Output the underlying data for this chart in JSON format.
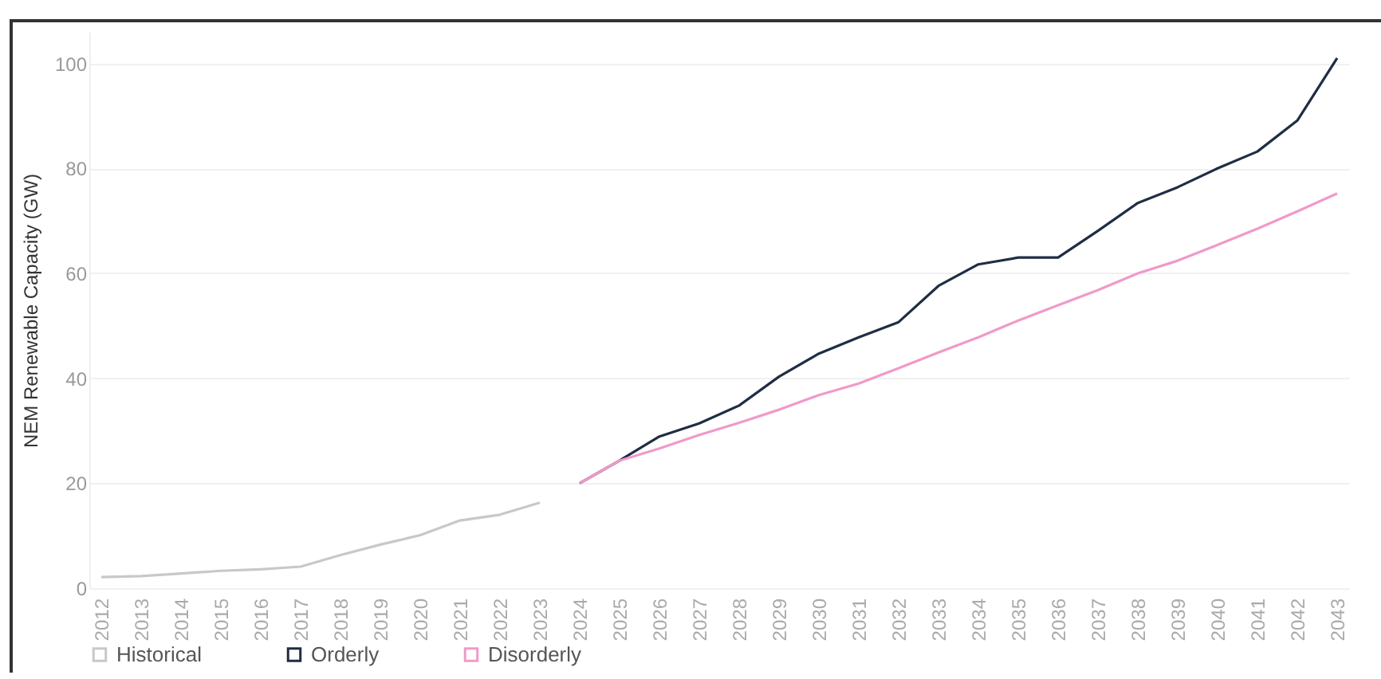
{
  "chart_data": {
    "type": "line",
    "ylabel": "NEM Renewable Capacity (GW)",
    "categories": [
      "2012",
      "2013",
      "2014",
      "2015",
      "2016",
      "2017",
      "2018",
      "2019",
      "2020",
      "2021",
      "2022",
      "2023",
      "2024",
      "2025",
      "2026",
      "2027",
      "2028",
      "2029",
      "2030",
      "2031",
      "2032",
      "2033",
      "2034",
      "2035",
      "2036",
      "2037",
      "2038",
      "2039",
      "2040",
      "2041",
      "2042",
      "2043"
    ],
    "series": [
      {
        "name": "Historical",
        "color": "#c8c8c8",
        "values": [
          2.1,
          2.3,
          2.8,
          3.3,
          3.6,
          4.1,
          6.3,
          8.3,
          10.1,
          12.9,
          14.0,
          16.3,
          null,
          null,
          null,
          null,
          null,
          null,
          null,
          null,
          null,
          null,
          null,
          null,
          null,
          null,
          null,
          null,
          null,
          null,
          null,
          null
        ]
      },
      {
        "name": "Orderly",
        "color": "#1f2d44",
        "values": [
          null,
          null,
          null,
          null,
          null,
          null,
          null,
          null,
          null,
          null,
          null,
          null,
          20.0,
          24.3,
          28.9,
          31.4,
          34.8,
          40.3,
          44.7,
          47.8,
          50.7,
          57.6,
          61.7,
          63.0,
          63.0,
          68.1,
          73.4,
          76.4,
          80.0,
          83.2,
          89.1,
          101.0
        ]
      },
      {
        "name": "Disorderly",
        "color": "#f09ac8",
        "values": [
          null,
          null,
          null,
          null,
          null,
          null,
          null,
          null,
          null,
          null,
          null,
          null,
          20.0,
          24.3,
          26.6,
          29.2,
          31.5,
          34.0,
          36.8,
          39.0,
          41.9,
          44.9,
          47.8,
          51.0,
          53.9,
          56.8,
          60.0,
          62.4,
          65.4,
          68.5,
          71.8,
          75.2
        ]
      }
    ],
    "ylim": [
      0,
      106
    ],
    "yticks": [
      0,
      20,
      40,
      60,
      80,
      100
    ],
    "grid": "y",
    "legend": "bottom left",
    "marker": "none",
    "line_style": "solid"
  }
}
